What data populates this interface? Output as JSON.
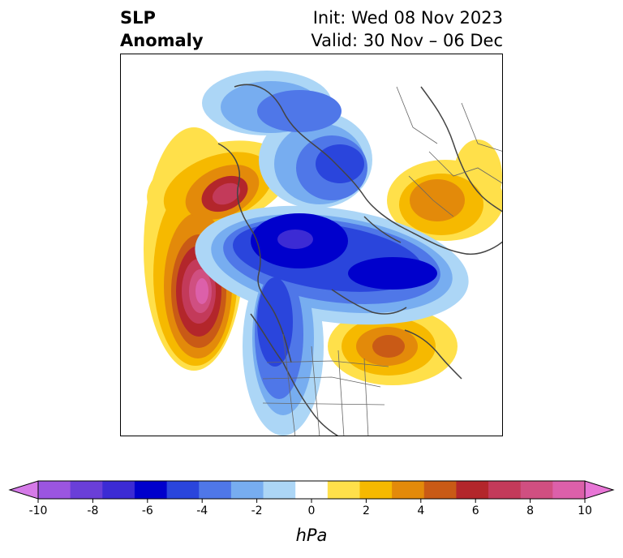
{
  "title": {
    "line1": "SLP",
    "line2": "Anomaly"
  },
  "init": {
    "line1": "Init: Wed 08 Nov 2023",
    "line2": "Valid: 30 Nov – 06 Dec"
  },
  "colorbar": {
    "unit": "hPa",
    "ticks": [
      "-10",
      "-8",
      "-6",
      "-4",
      "-2",
      "0",
      "2",
      "4",
      "6",
      "8",
      "10"
    ],
    "colors": [
      "#d57ae8",
      "#9b55e0",
      "#6a3fd8",
      "#3c2bd4",
      "#0000cc",
      "#2a45dc",
      "#4f77e8",
      "#77adf0",
      "#acd6f6",
      "#ffffff",
      "#ffe04a",
      "#f6b900",
      "#e38a0a",
      "#c95a16",
      "#b3262b",
      "#c33a5a",
      "#d04f81",
      "#dc60aa",
      "#e876d6"
    ]
  }
}
